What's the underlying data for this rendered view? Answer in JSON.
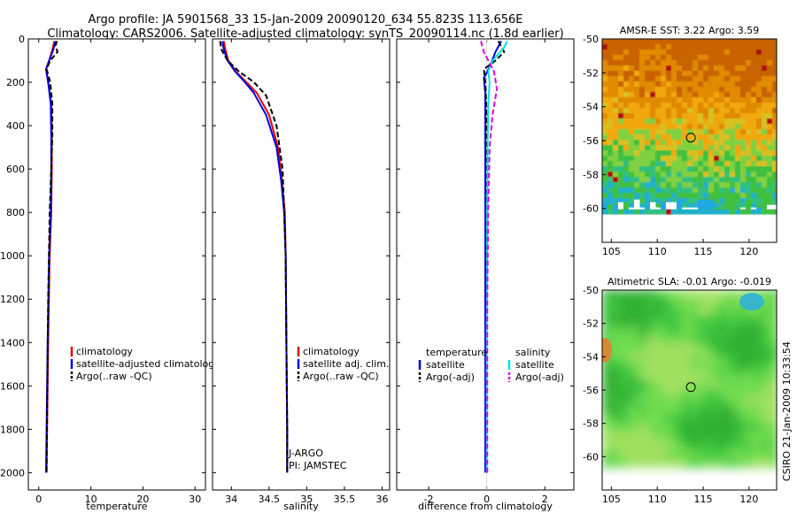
{
  "header": {
    "line1": "Argo profile: JA 5901568_33 15-Jan-2009 20090120_634 55.823S 113.656E",
    "line2": "Climatology: CARS2006. Satellite-adjusted climatology: synTS_20090114.nc (1.8d earlier)"
  },
  "side_label": "CSIRO 21-Jan-2009 10:33:54",
  "colors": {
    "climatology": "#e00000",
    "satellite": "#0000e0",
    "argo": "#000000",
    "satellite_sal": "#00e0e0",
    "argo_sal_adj": "#e000e0"
  },
  "chart_data": [
    {
      "type": "line",
      "id": "temperature",
      "xlabel": "temperature",
      "xlim": [
        -2,
        32
      ],
      "xticks": [
        0,
        10,
        20,
        30
      ],
      "ylim": [
        2080,
        0
      ],
      "yticks": [
        0,
        200,
        400,
        600,
        800,
        1000,
        1200,
        1400,
        1600,
        1800,
        2000
      ],
      "legend": {
        "position": "center-right",
        "labels": [
          "climatology",
          "satellite-adjusted climatology",
          "Argo(..raw -QC)"
        ]
      },
      "series": [
        {
          "name": "climatology",
          "color_key": "climatology",
          "dash": false,
          "x": [
            3.0,
            2.6,
            2.0,
            1.4,
            1.8,
            2.4,
            2.5,
            2.5,
            2.4,
            2.1,
            1.8,
            1.6,
            1.5
          ],
          "y": [
            10,
            50,
            100,
            140,
            200,
            300,
            450,
            600,
            800,
            1000,
            1400,
            1800,
            2000
          ]
        },
        {
          "name": "satellite-adjusted climatology",
          "color_key": "satellite",
          "dash": false,
          "x": [
            3.2,
            2.8,
            2.0,
            1.4,
            1.8,
            2.3,
            2.4,
            2.4,
            2.3,
            2.0,
            1.7,
            1.5,
            1.4
          ],
          "y": [
            10,
            50,
            100,
            140,
            200,
            300,
            450,
            600,
            800,
            1000,
            1400,
            1800,
            2000
          ]
        },
        {
          "name": "Argo(..raw -QC)",
          "color_key": "argo",
          "dash": true,
          "x": [
            3.5,
            3.2,
            3.6,
            2.2,
            1.5,
            2.2,
            2.6,
            2.6,
            2.4,
            2.1,
            1.8,
            1.6,
            1.5
          ],
          "y": [
            10,
            30,
            60,
            100,
            140,
            200,
            300,
            450,
            600,
            800,
            1200,
            1700,
            2000
          ]
        }
      ],
      "annotations": []
    },
    {
      "type": "line",
      "id": "salinity",
      "xlabel": "salinity",
      "xlim": [
        33.75,
        36.1
      ],
      "xticks": [
        34,
        34.5,
        35,
        35.5,
        36
      ],
      "ylim": [
        2080,
        0
      ],
      "yticks": [
        0,
        200,
        400,
        600,
        800,
        1000,
        1200,
        1400,
        1600,
        1800,
        2000
      ],
      "legend": {
        "position": "center-right",
        "labels": [
          "climatology",
          "satellite adj. clim.",
          "Argo(..raw -QC)"
        ]
      },
      "series": [
        {
          "name": "climatology",
          "color_key": "climatology",
          "dash": false,
          "x": [
            33.9,
            33.92,
            33.96,
            34.06,
            34.2,
            34.34,
            34.5,
            34.62,
            34.67,
            34.71,
            34.72,
            34.73,
            34.74,
            34.74
          ],
          "y": [
            10,
            50,
            100,
            150,
            200,
            250,
            350,
            500,
            650,
            800,
            1000,
            1400,
            1800,
            2000
          ]
        },
        {
          "name": "satellite adj. clim.",
          "color_key": "satellite",
          "dash": false,
          "x": [
            33.88,
            33.9,
            33.95,
            34.05,
            34.18,
            34.3,
            34.46,
            34.6,
            34.66,
            34.7,
            34.72,
            34.73,
            34.74,
            34.74
          ],
          "y": [
            10,
            50,
            100,
            150,
            200,
            250,
            350,
            500,
            650,
            800,
            1000,
            1400,
            1800,
            2000
          ]
        },
        {
          "name": "Argo(..raw -QC)",
          "color_key": "argo",
          "dash": true,
          "x": [
            33.85,
            33.87,
            33.95,
            34.1,
            34.3,
            34.46,
            34.6,
            34.68,
            34.7,
            34.72,
            34.73,
            34.74,
            34.74
          ],
          "y": [
            10,
            50,
            100,
            150,
            200,
            260,
            400,
            600,
            800,
            1000,
            1400,
            1800,
            2000
          ]
        }
      ],
      "annotations": [
        "J-ARGO",
        "PI: JAMSTEC"
      ]
    },
    {
      "type": "line",
      "id": "difference",
      "xlabel": "difference from climatology",
      "xlim": [
        -3.1,
        3.0
      ],
      "xticks": [
        -2,
        0,
        2
      ],
      "ylim": [
        2080,
        0
      ],
      "yticks": [
        0,
        200,
        400,
        600,
        800,
        1000,
        1200,
        1400,
        1600,
        1800,
        2000
      ],
      "legend": {
        "position": "center-right",
        "labels": [
          "temperature",
          "satellite",
          "Argo(-adj)",
          "salinity",
          "satellite",
          "Argo(-adj)"
        ]
      },
      "series": [
        {
          "name": "temperature satellite",
          "color_key": "satellite",
          "dash": false,
          "x": [
            0.5,
            0.3,
            0.1,
            -0.1,
            -0.05,
            -0.05,
            -0.05,
            -0.05,
            -0.05,
            -0.05
          ],
          "y": [
            10,
            60,
            130,
            180,
            250,
            350,
            600,
            1000,
            1600,
            2000
          ]
        },
        {
          "name": "temperature Argo(-adj)",
          "color_key": "argo",
          "dash": true,
          "x": [
            0.4,
            0.6,
            0.3,
            -0.1,
            -0.05,
            -0.02,
            0.0,
            0.02,
            0.0,
            -0.02,
            0.0
          ],
          "y": [
            10,
            60,
            100,
            140,
            200,
            300,
            500,
            800,
            1200,
            1700,
            2000
          ]
        },
        {
          "name": "salinity satellite",
          "color_key": "satellite_sal",
          "dash": false,
          "x": [
            0.7,
            0.6,
            0.2,
            0.05,
            0.1,
            0.05,
            0.03,
            0.02,
            0.0,
            0.0
          ],
          "y": [
            10,
            40,
            100,
            150,
            200,
            300,
            500,
            800,
            1400,
            2000
          ]
        },
        {
          "name": "salinity Argo(-adj)",
          "color_key": "argo_sal_adj",
          "dash": true,
          "x": [
            -0.2,
            -0.1,
            0.25,
            0.35,
            0.2,
            0.1,
            0.05,
            0.02,
            0.02
          ],
          "y": [
            10,
            60,
            150,
            230,
            350,
            500,
            800,
            1200,
            2000
          ]
        }
      ],
      "annotations": []
    },
    {
      "type": "heatmap",
      "id": "sst-map",
      "title": "AMSR-E SST: 3.22  Argo: 3.59",
      "xlim": [
        104,
        123
      ],
      "ylim": [
        -62,
        -50
      ],
      "xticks": [
        105,
        110,
        115,
        120
      ],
      "yticks": [
        -50,
        -52,
        -54,
        -56,
        -58,
        -60
      ],
      "marker": {
        "lon": 113.656,
        "lat": -55.823
      }
    },
    {
      "type": "heatmap",
      "id": "sla-map",
      "title": "Altimetric SLA: -0.01  Argo: -0.019",
      "xlim": [
        104,
        123
      ],
      "ylim": [
        -62,
        -50
      ],
      "xticks": [
        105,
        110,
        115,
        120
      ],
      "yticks": [
        -50,
        -52,
        -54,
        -56,
        -58,
        -60
      ],
      "marker": {
        "lon": 113.656,
        "lat": -55.823
      }
    }
  ]
}
